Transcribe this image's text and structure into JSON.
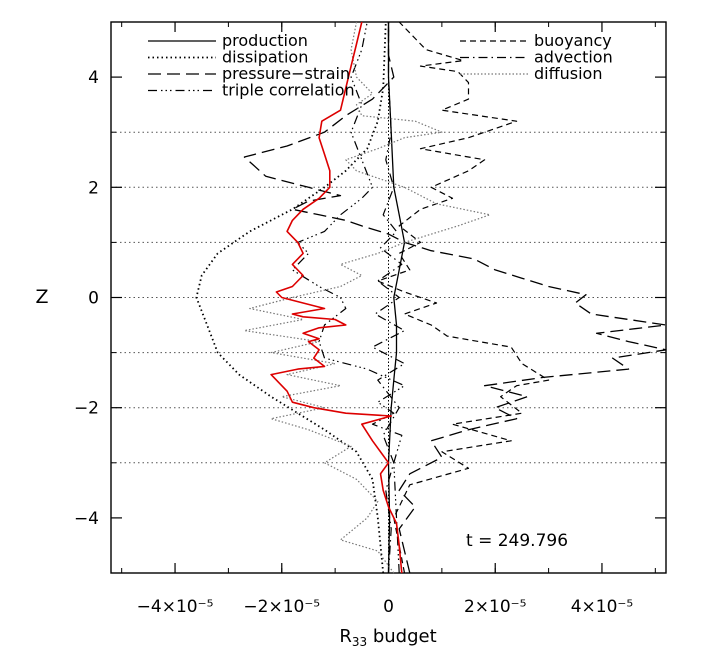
{
  "chart_data": {
    "type": "line",
    "xlabel": "R",
    "xlabel_sub": "33",
    "xlabel_suffix": " budget",
    "ylabel": "Z",
    "xlim": [
      -5.2e-05,
      5.2e-05
    ],
    "ylim": [
      -5,
      5
    ],
    "x_ticks": [
      -4e-05,
      -2e-05,
      0,
      2e-05,
      4e-05
    ],
    "x_tick_labels": [
      "−4×10⁻⁵",
      "−2×10⁻⁵",
      "0",
      "2×10⁻⁵",
      "4×10⁻⁵"
    ],
    "y_ticks": [
      -4,
      -2,
      0,
      2,
      4
    ],
    "y_tick_labels": [
      "−4",
      "−2",
      "0",
      "2",
      "4"
    ],
    "h_reference_lines_z": [
      3,
      2,
      1,
      0,
      -1,
      -2,
      -3
    ],
    "annotation": "t  =  249.796",
    "legend_placement": "top",
    "legend_entries": [
      "production",
      "dissipation",
      "pressure−strain",
      "triple correlation",
      "buoyancy",
      "advection",
      "diffusion"
    ],
    "series": [
      {
        "name": "production",
        "color": "#000000",
        "points": [
          [
            0.0,
            -5
          ],
          [
            2e-07,
            -4
          ],
          [
            0.0,
            -3
          ],
          [
            5e-07,
            -2
          ],
          [
            1e-06,
            -1.5
          ],
          [
            1.5e-06,
            -1
          ],
          [
            1.5e-06,
            -0.5
          ],
          [
            1e-06,
            0
          ],
          [
            2e-06,
            0.5
          ],
          [
            3e-06,
            1
          ],
          [
            2e-06,
            1.5
          ],
          [
            1e-06,
            2
          ],
          [
            5e-07,
            3
          ],
          [
            0.0,
            4
          ],
          [
            0.0,
            5
          ]
        ]
      },
      {
        "name": "dissipation",
        "color": "#000000",
        "points": [
          [
            -1e-06,
            -5
          ],
          [
            -2e-06,
            -4
          ],
          [
            -3e-06,
            -3.3
          ],
          [
            -6e-06,
            -2.8
          ],
          [
            -1.2e-05,
            -2.4
          ],
          [
            -1.7e-05,
            -2.1
          ],
          [
            -2.2e-05,
            -1.8
          ],
          [
            -2.8e-05,
            -1.4
          ],
          [
            -3.2e-05,
            -1.0
          ],
          [
            -3.4e-05,
            -0.5
          ],
          [
            -3.6e-05,
            0
          ],
          [
            -3.5e-05,
            0.4
          ],
          [
            -3.2e-05,
            0.8
          ],
          [
            -2.6e-05,
            1.2
          ],
          [
            -1.8e-05,
            1.6
          ],
          [
            -1.2e-05,
            2.0
          ],
          [
            -8e-06,
            2.3
          ],
          [
            -4e-06,
            2.7
          ],
          [
            -2e-06,
            3.2
          ],
          [
            -1e-06,
            3.8
          ],
          [
            -5e-07,
            5
          ]
        ]
      },
      {
        "name": "pressure−strain",
        "color": "#000000",
        "points": [
          [
            4e-06,
            -5
          ],
          [
            3e-06,
            -4.6
          ],
          [
            2e-06,
            -4.2
          ],
          [
            5e-06,
            -3.8
          ],
          [
            2e-06,
            -3.5
          ],
          [
            4e-06,
            -3.2
          ],
          [
            1e-05,
            -2.9
          ],
          [
            8e-06,
            -2.6
          ],
          [
            1.5e-05,
            -2.4
          ],
          [
            2.4e-05,
            -2.2
          ],
          [
            2e-05,
            -2.0
          ],
          [
            2.6e-05,
            -1.8
          ],
          [
            1.8e-05,
            -1.6
          ],
          [
            2.9e-05,
            -1.45
          ],
          [
            4.5e-05,
            -1.3
          ],
          [
            4.2e-05,
            -1.1
          ],
          [
            5.2e-05,
            -0.95
          ],
          [
            4.5e-05,
            -0.8
          ],
          [
            3.9e-05,
            -0.65
          ],
          [
            5.2e-05,
            -0.5
          ],
          [
            3.8e-05,
            -0.3
          ],
          [
            3.5e-05,
            -0.1
          ],
          [
            3.7e-05,
            0.05
          ],
          [
            3e-05,
            0.2
          ],
          [
            2.5e-05,
            0.35
          ],
          [
            2e-05,
            0.5
          ],
          [
            1.6e-05,
            0.7
          ],
          [
            8e-06,
            0.85
          ],
          [
            3e-06,
            1.0
          ],
          [
            0.0,
            1.15
          ],
          [
            -5e-06,
            1.3
          ],
          [
            -8e-06,
            1.4
          ],
          [
            -1.3e-05,
            1.5
          ],
          [
            -1.8e-05,
            1.6
          ],
          [
            -1.5e-05,
            1.75
          ],
          [
            -9e-06,
            1.85
          ],
          [
            -1.5e-05,
            2.0
          ],
          [
            -2.3e-05,
            2.2
          ],
          [
            -2.7e-05,
            2.55
          ],
          [
            -1.9e-05,
            2.75
          ],
          [
            -1.2e-05,
            3.0
          ],
          [
            -8e-06,
            3.3
          ],
          [
            -3e-06,
            3.6
          ],
          [
            1e-06,
            4.0
          ],
          [
            0.0,
            4.4
          ],
          [
            0.0,
            5
          ]
        ]
      },
      {
        "name": "triple correlation",
        "color": "#000000",
        "points": [
          [
            2e-06,
            -5
          ],
          [
            1.5e-06,
            -4
          ],
          [
            1e-06,
            -3
          ],
          [
            2.5e-06,
            -2.5
          ],
          [
            -3e-06,
            -2.3
          ],
          [
            1e-06,
            -2.1
          ],
          [
            -2e-06,
            -1.9
          ],
          [
            3e-06,
            -1.6
          ],
          [
            -4e-06,
            -1.3
          ],
          [
            -1.2e-05,
            -1.1
          ],
          [
            -1.3e-05,
            -0.8
          ],
          [
            -1.2e-05,
            -0.5
          ],
          [
            -8e-06,
            -0.2
          ],
          [
            -9e-06,
            0.0
          ],
          [
            -1.3e-05,
            0.2
          ],
          [
            -1.8e-05,
            0.5
          ],
          [
            -1.5e-05,
            0.8
          ],
          [
            -1.7e-05,
            1.0
          ],
          [
            -1.2e-05,
            1.2
          ],
          [
            -9e-06,
            1.5
          ],
          [
            -5e-06,
            1.8
          ],
          [
            -3e-06,
            2.0
          ],
          [
            -5e-06,
            2.5
          ],
          [
            -7e-06,
            3.0
          ],
          [
            -5e-06,
            3.5
          ],
          [
            -7e-06,
            4.0
          ],
          [
            -5e-06,
            4.5
          ],
          [
            -4e-06,
            5
          ]
        ]
      },
      {
        "name": "buoyancy",
        "color": "#000000",
        "points": [
          [
            3e-06,
            -5
          ],
          [
            2e-06,
            -4.5
          ],
          [
            1e-06,
            -4
          ],
          [
            4e-06,
            -3.4
          ],
          [
            1.5e-05,
            -3.1
          ],
          [
            1e-05,
            -2.8
          ],
          [
            2.3e-05,
            -2.6
          ],
          [
            1.2e-05,
            -2.3
          ],
          [
            2.5e-05,
            -2.1
          ],
          [
            2.1e-05,
            -1.8
          ],
          [
            2.4e-05,
            -1.6
          ],
          [
            3e-05,
            -1.5
          ],
          [
            2.5e-05,
            -1.2
          ],
          [
            2.3e-05,
            -0.9
          ],
          [
            1.1e-05,
            -0.7
          ],
          [
            8e-06,
            -0.5
          ],
          [
            3e-06,
            -0.3
          ],
          [
            9e-06,
            -0.1
          ],
          [
            3e-06,
            0.1
          ],
          [
            -2e-06,
            0.3
          ],
          [
            4e-06,
            0.5
          ],
          [
            2e-06,
            0.8
          ],
          [
            6e-06,
            1.0
          ],
          [
            2e-06,
            1.3
          ],
          [
            6e-06,
            1.6
          ],
          [
            1.2e-05,
            1.8
          ],
          [
            8e-06,
            2.0
          ],
          [
            1.5e-05,
            2.3
          ],
          [
            1.8e-05,
            2.5
          ],
          [
            6e-06,
            2.7
          ],
          [
            1.5e-05,
            2.9
          ],
          [
            2.4e-05,
            3.2
          ],
          [
            1e-05,
            3.4
          ],
          [
            1.5e-05,
            3.6
          ],
          [
            1.5e-05,
            3.9
          ],
          [
            1.3e-05,
            4.1
          ],
          [
            6e-06,
            4.2
          ],
          [
            1.4e-05,
            4.3
          ],
          [
            7e-06,
            4.5
          ],
          [
            5e-06,
            4.7
          ],
          [
            2e-06,
            5
          ]
        ]
      },
      {
        "name": "advection",
        "color": "#000000",
        "points": [
          [
            0.0,
            -5
          ],
          [
            5e-07,
            -4.2
          ],
          [
            -5e-07,
            -3.5
          ],
          [
            1e-06,
            -3.0
          ],
          [
            -1e-06,
            -2.5
          ],
          [
            2e-06,
            -2.0
          ],
          [
            -2e-06,
            -1.5
          ],
          [
            3e-06,
            -1.2
          ],
          [
            -3e-06,
            -0.9
          ],
          [
            3e-06,
            -0.6
          ],
          [
            -2.5e-06,
            -0.3
          ],
          [
            2e-06,
            0.0
          ],
          [
            -2e-06,
            0.3
          ],
          [
            2.5e-06,
            0.6
          ],
          [
            -1.5e-06,
            0.9
          ],
          [
            1.5e-06,
            1.2
          ],
          [
            -1e-06,
            1.5
          ],
          [
            1e-06,
            2.0
          ],
          [
            -5e-07,
            2.5
          ],
          [
            5e-07,
            3.0
          ],
          [
            0.0,
            4.0
          ],
          [
            0.0,
            5
          ]
        ]
      },
      {
        "name": "diffusion",
        "color": "#777777",
        "points": [
          [
            1e-06,
            -5
          ],
          [
            -2e-06,
            -4.6
          ],
          [
            -9e-06,
            -4.4
          ],
          [
            -4e-06,
            -4.0
          ],
          [
            -2e-06,
            -3.7
          ],
          [
            -6e-06,
            -3.3
          ],
          [
            -1.2e-05,
            -3.0
          ],
          [
            -7e-06,
            -2.7
          ],
          [
            -1.5e-05,
            -2.4
          ],
          [
            -2.2e-05,
            -2.2
          ],
          [
            -1.2e-05,
            -2.0
          ],
          [
            -2e-05,
            -1.8
          ],
          [
            -9e-06,
            -1.6
          ],
          [
            -1.9e-05,
            -1.4
          ],
          [
            -1e-05,
            -1.2
          ],
          [
            -2.2e-05,
            -1.0
          ],
          [
            -1.3e-05,
            -0.8
          ],
          [
            -2.7e-05,
            -0.6
          ],
          [
            -1.6e-05,
            -0.4
          ],
          [
            -2.6e-05,
            -0.2
          ],
          [
            -1.8e-05,
            0.0
          ],
          [
            -9e-06,
            0.2
          ],
          [
            -5e-06,
            0.4
          ],
          [
            -9e-06,
            0.6
          ],
          [
            -2e-06,
            0.8
          ],
          [
            3e-06,
            1.0
          ],
          [
            1.3e-05,
            1.3
          ],
          [
            1.9e-05,
            1.5
          ],
          [
            9e-06,
            1.7
          ],
          [
            3e-06,
            2.0
          ],
          [
            -6e-06,
            2.3
          ],
          [
            -8e-06,
            2.5
          ],
          [
            -2e-06,
            2.7
          ],
          [
            3e-06,
            2.9
          ],
          [
            1e-05,
            3.0
          ],
          [
            5e-06,
            3.2
          ],
          [
            -5e-06,
            3.3
          ],
          [
            -6e-06,
            3.5
          ],
          [
            -3e-06,
            3.7
          ],
          [
            -6e-06,
            4.0
          ],
          [
            -7e-06,
            4.5
          ],
          [
            -6e-06,
            5
          ]
        ]
      },
      {
        "name": "",
        "color": "#dd0000",
        "points": [
          [
            2.5e-06,
            -5
          ],
          [
            2e-06,
            -4.5
          ],
          [
            1.5e-06,
            -4.1
          ],
          [
            0.0,
            -3.8
          ],
          [
            -1e-06,
            -3.5
          ],
          [
            -1.5e-06,
            -3.2
          ],
          [
            0.0,
            -3.0
          ],
          [
            -3e-06,
            -2.6
          ],
          [
            -5e-06,
            -2.3
          ],
          [
            5e-07,
            -2.15
          ],
          [
            -8e-06,
            -2.1
          ],
          [
            -1.4e-05,
            -2.0
          ],
          [
            -1.8e-05,
            -1.9
          ],
          [
            -1.9e-05,
            -1.7
          ],
          [
            -2.1e-05,
            -1.5
          ],
          [
            -2.2e-05,
            -1.4
          ],
          [
            -1.7e-05,
            -1.3
          ],
          [
            -1.2e-05,
            -1.25
          ],
          [
            -1.4e-05,
            -1.1
          ],
          [
            -1.3e-05,
            -0.95
          ],
          [
            -1.5e-05,
            -0.8
          ],
          [
            -1.3e-05,
            -0.75
          ],
          [
            -1.6e-05,
            -0.65
          ],
          [
            -1.3e-05,
            -0.55
          ],
          [
            -8e-06,
            -0.5
          ],
          [
            -1e-05,
            -0.4
          ],
          [
            -1.6e-05,
            -0.35
          ],
          [
            -1.8e-05,
            -0.3
          ],
          [
            -1.2e-05,
            -0.2
          ],
          [
            -1.6e-05,
            -0.1
          ],
          [
            -2e-05,
            0.0
          ],
          [
            -2.1e-05,
            0.1
          ],
          [
            -1.8e-05,
            0.2
          ],
          [
            -1.6e-05,
            0.4
          ],
          [
            -1.8e-05,
            0.6
          ],
          [
            -1.6e-05,
            0.8
          ],
          [
            -1.7e-05,
            1.0
          ],
          [
            -1.9e-05,
            1.2
          ],
          [
            -1.8e-05,
            1.4
          ],
          [
            -1.6e-05,
            1.6
          ],
          [
            -1.3e-05,
            1.8
          ],
          [
            -1.1e-05,
            2.0
          ],
          [
            -1.1e-05,
            2.3
          ],
          [
            -1.2e-05,
            2.6
          ],
          [
            -1.3e-05,
            2.9
          ],
          [
            -1.25e-05,
            3.2
          ],
          [
            -9e-06,
            3.4
          ],
          [
            -8e-06,
            3.8
          ],
          [
            -7e-06,
            4.2
          ],
          [
            -6e-06,
            4.6
          ],
          [
            -5e-06,
            5
          ]
        ]
      }
    ]
  }
}
